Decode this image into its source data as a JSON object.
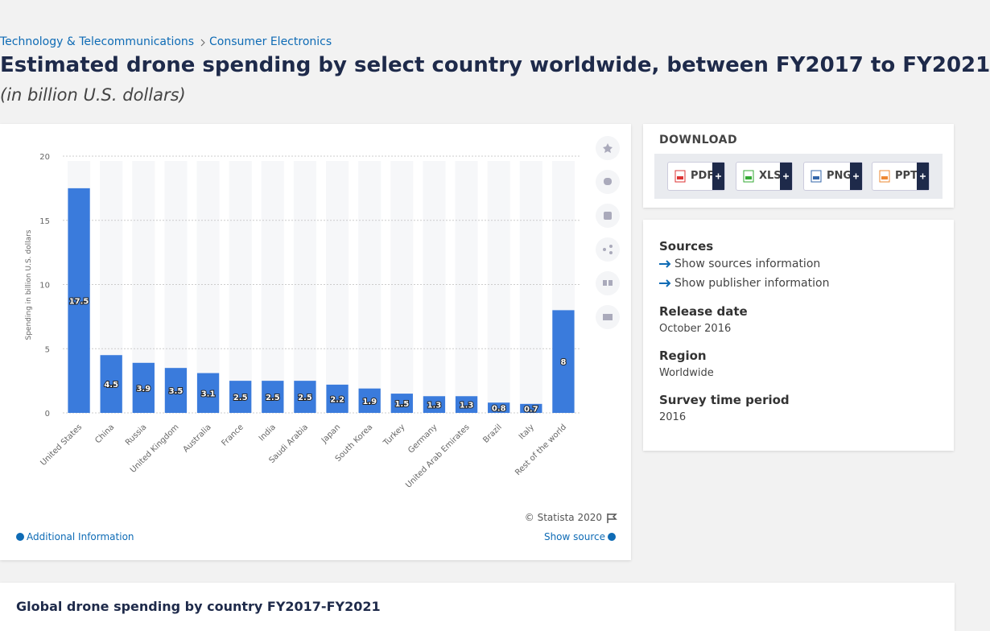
{
  "breadcrumb": [
    "Technology & Telecommunications",
    "Consumer Electronics"
  ],
  "header": {
    "title": "Estimated drone spending by select country worldwide, between FY2017 to FY2021",
    "subtitle": "(in billion U.S. dollars)"
  },
  "chart_data": {
    "type": "bar",
    "ylabel": "Spending in billion U.S. dollars",
    "categories": [
      "United States",
      "China",
      "Russia",
      "United Kingdom",
      "Australia",
      "France",
      "India",
      "Saudi Arabia",
      "Japan",
      "South Korea",
      "Turkey",
      "Germany",
      "United Arab Emirates",
      "Brazil",
      "Italy",
      "Rest of the world"
    ],
    "values": [
      17.5,
      4.5,
      3.9,
      3.5,
      3.1,
      2.5,
      2.5,
      2.5,
      2.2,
      1.9,
      1.5,
      1.3,
      1.3,
      0.8,
      0.7,
      8
    ],
    "color": "#3a7bdc",
    "ylim": [
      0,
      20
    ],
    "yticks": [
      0,
      5,
      10,
      15,
      20
    ],
    "grid": true,
    "credit": "© Statista 2020"
  },
  "chart_footer": {
    "additional": "Additional Information",
    "show_source": "Show source"
  },
  "download": {
    "title": "DOWNLOAD",
    "formats": [
      "PDF",
      "XLS",
      "PNG",
      "PPT"
    ]
  },
  "details": {
    "sources_title": "Sources",
    "sources_link": "Show sources information",
    "publisher_link": "Show publisher information",
    "release_title": "Release date",
    "release": "October 2016",
    "region_title": "Region",
    "region": "Worldwide",
    "survey_title": "Survey time period",
    "survey": "2016"
  },
  "next_title": "Global drone spending by country FY2017-FY2021"
}
